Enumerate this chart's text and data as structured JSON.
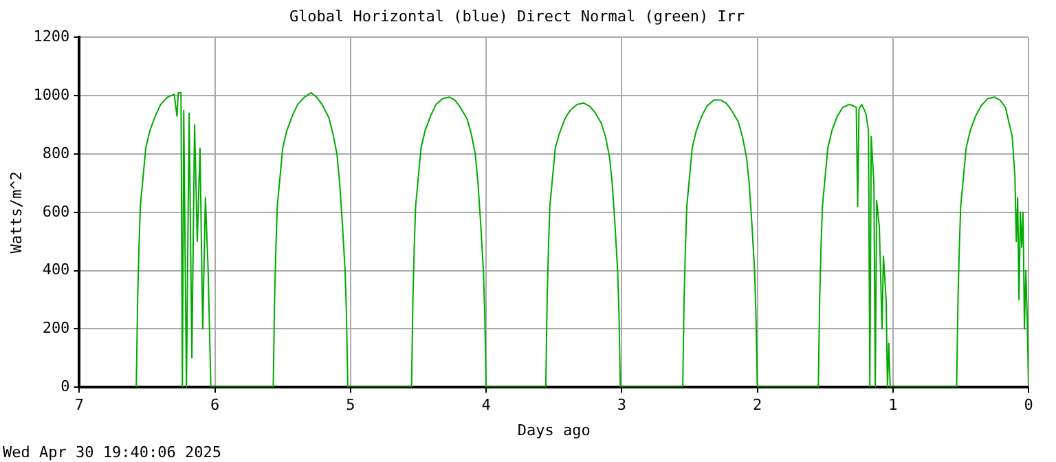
{
  "chart_data": {
    "type": "line",
    "title": "Global Horizontal (blue) Direct Normal (green) Irr",
    "xlabel": "Days ago",
    "ylabel": "Watts/m^2",
    "annotations": [
      "Wed Apr 30 19:40:06 2025"
    ],
    "xlim": [
      7,
      0
    ],
    "xticks": [
      7,
      6,
      5,
      4,
      3,
      2,
      1,
      0
    ],
    "ylim": [
      0,
      1200
    ],
    "yticks": [
      0,
      200,
      400,
      600,
      800,
      1000,
      1200
    ],
    "grid": true,
    "series": [
      {
        "color": "#00aa00",
        "x": [
          6.58,
          6.57,
          6.56,
          6.55,
          6.53,
          6.51,
          6.48,
          6.44,
          6.4,
          6.35,
          6.3,
          6.28,
          6.27,
          6.25,
          6.24,
          6.23,
          6.21,
          6.19,
          6.17,
          6.15,
          6.13,
          6.11,
          6.09,
          6.07,
          6.05,
          6.03,
          5.57,
          5.56,
          5.55,
          5.54,
          5.52,
          5.5,
          5.47,
          5.43,
          5.39,
          5.34,
          5.29,
          5.25,
          5.21,
          5.16,
          5.13,
          5.1,
          5.08,
          5.06,
          5.04,
          5.03,
          5.02,
          4.55,
          4.54,
          4.53,
          4.52,
          4.5,
          4.48,
          4.45,
          4.41,
          4.37,
          4.32,
          4.27,
          4.23,
          4.19,
          4.14,
          4.11,
          4.08,
          4.06,
          4.04,
          4.02,
          4.01,
          4.0,
          3.56,
          3.55,
          3.54,
          3.53,
          3.51,
          3.49,
          3.46,
          3.42,
          3.38,
          3.33,
          3.28,
          3.24,
          3.2,
          3.15,
          3.12,
          3.09,
          3.07,
          3.05,
          3.03,
          3.02,
          3.01,
          2.55,
          2.54,
          2.53,
          2.52,
          2.5,
          2.48,
          2.45,
          2.41,
          2.37,
          2.32,
          2.27,
          2.23,
          2.19,
          2.14,
          2.11,
          2.08,
          2.06,
          2.04,
          2.02,
          2.01,
          2.0,
          1.55,
          1.54,
          1.53,
          1.52,
          1.5,
          1.48,
          1.45,
          1.41,
          1.37,
          1.32,
          1.29,
          1.27,
          1.26,
          1.25,
          1.23,
          1.2,
          1.18,
          1.17,
          1.16,
          1.14,
          1.13,
          1.12,
          1.1,
          1.08,
          1.07,
          1.05,
          1.04,
          1.03,
          1.02,
          0.53,
          0.52,
          0.51,
          0.5,
          0.48,
          0.46,
          0.43,
          0.39,
          0.35,
          0.3,
          0.25,
          0.21,
          0.17,
          0.14,
          0.12,
          0.1,
          0.09,
          0.08,
          0.07,
          0.06,
          0.05,
          0.04,
          0.03,
          0.02,
          0.01,
          0.0
        ],
        "values": [
          0,
          300,
          480,
          620,
          720,
          820,
          880,
          930,
          970,
          995,
          1005,
          930,
          1010,
          1010,
          0,
          950,
          0,
          940,
          100,
          900,
          500,
          820,
          200,
          650,
          400,
          0,
          0,
          300,
          480,
          620,
          720,
          820,
          880,
          930,
          970,
          995,
          1010,
          995,
          970,
          925,
          870,
          800,
          700,
          560,
          400,
          250,
          0,
          0,
          300,
          480,
          620,
          720,
          820,
          880,
          930,
          970,
          990,
          995,
          985,
          960,
          920,
          870,
          800,
          700,
          560,
          400,
          250,
          0,
          0,
          300,
          480,
          620,
          720,
          820,
          870,
          920,
          950,
          970,
          975,
          965,
          945,
          905,
          860,
          790,
          700,
          560,
          400,
          250,
          0,
          0,
          300,
          480,
          620,
          720,
          820,
          880,
          930,
          965,
          985,
          985,
          975,
          950,
          910,
          860,
          790,
          700,
          560,
          400,
          250,
          0,
          0,
          300,
          480,
          620,
          720,
          820,
          880,
          930,
          960,
          970,
          965,
          960,
          620,
          955,
          970,
          940,
          880,
          0,
          860,
          700,
          0,
          640,
          550,
          200,
          450,
          300,
          0,
          150,
          0,
          0,
          300,
          480,
          620,
          720,
          820,
          880,
          930,
          965,
          990,
          995,
          985,
          960,
          900,
          860,
          720,
          500,
          650,
          300,
          600,
          480,
          600,
          200,
          400,
          250,
          0
        ]
      }
    ]
  }
}
